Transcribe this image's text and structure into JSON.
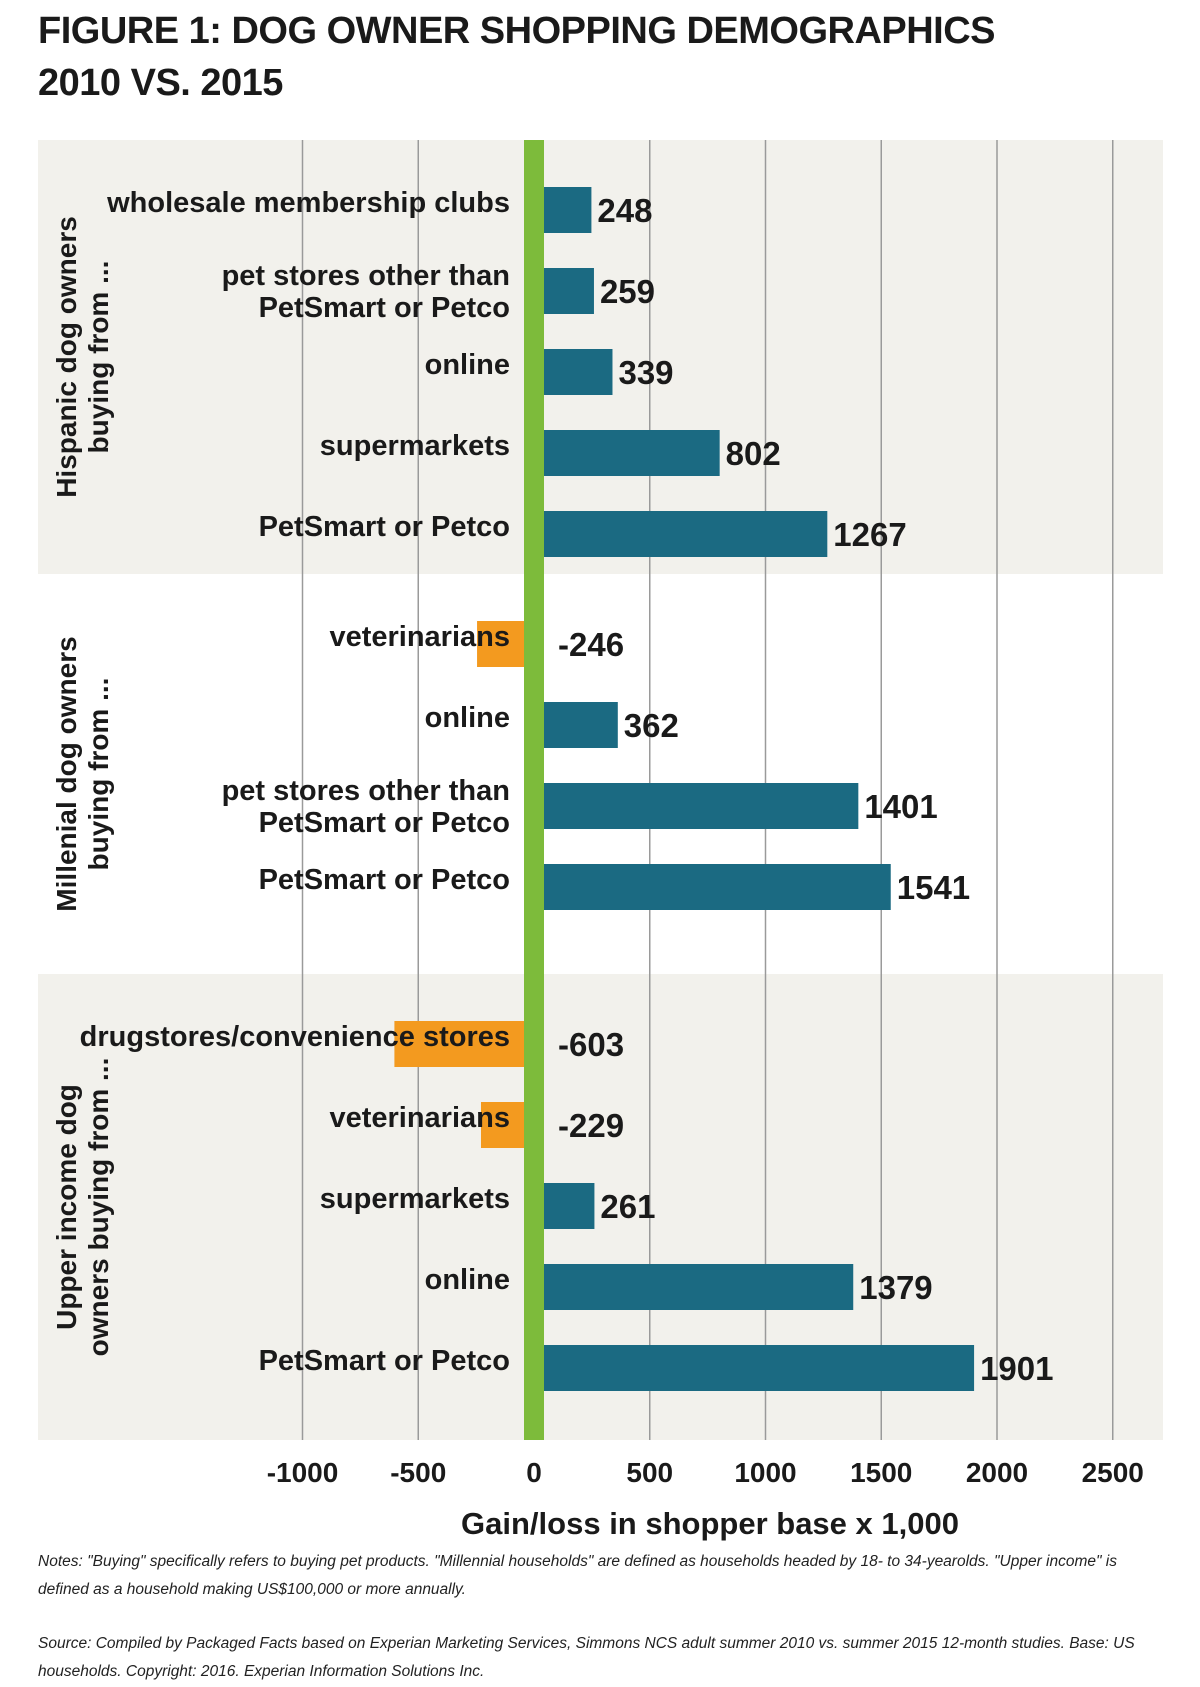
{
  "title_line1": "FIGURE 1: DOG OWNER SHOPPING DEMOGRAPHICS",
  "title_line2": "2010 VS. 2015",
  "notes": "Notes: \"Buying\" specifically refers to buying pet products. \"Millennial households\" are defined as households headed by 18- to 34-yearolds. \"Upper income\" is defined as a household making US$100,000 or more annually.",
  "source": "Source: Compiled by Packaged Facts based on Experian Marketing Services, Simmons NCS adult summer 2010 vs. summer 2015 12-month studies. Base: US households. Copyright: 2016. Experian Information Solutions Inc.",
  "chart_data": {
    "type": "bar",
    "orientation": "horizontal",
    "xlabel": "Gain/loss in shopper base x 1,000",
    "xlim": [
      -1000,
      2500
    ],
    "xticks": [
      -1000,
      -500,
      0,
      500,
      1000,
      1500,
      2000,
      2500
    ],
    "grid": true,
    "colors": {
      "positive": "#1b6a82",
      "negative": "#f39a1f",
      "zero_line": "#7dbb3b",
      "panel": "#f2f1ec"
    },
    "groups": [
      {
        "label": "Hispanic dog owners buying from ...",
        "label_lines": [
          "Hispanic dog owners",
          "buying from ..."
        ],
        "shaded": true,
        "bars": [
          {
            "category": "wholesale membership clubs",
            "value": 248
          },
          {
            "category": "pet stores other than PetSmart or Petco",
            "value": 259
          },
          {
            "category": "online",
            "value": 339
          },
          {
            "category": "supermarkets",
            "value": 802
          },
          {
            "category": "PetSmart or Petco",
            "value": 1267
          }
        ]
      },
      {
        "label": "Millenial dog owners buying from ...",
        "label_lines": [
          "Millenial dog owners",
          "buying from ..."
        ],
        "shaded": false,
        "bars": [
          {
            "category": "veterinarians",
            "value": -246
          },
          {
            "category": "online",
            "value": 362
          },
          {
            "category": "pet stores other than PetSmart or Petco",
            "value": 1401
          },
          {
            "category": "PetSmart or Petco",
            "value": 1541
          }
        ]
      },
      {
        "label": "Upper income dog owners buying from ...",
        "label_lines": [
          "Upper income dog",
          "owners buying from ..."
        ],
        "shaded": true,
        "bars": [
          {
            "category": "drugstores/convenience stores",
            "value": -603
          },
          {
            "category": "veterinarians",
            "value": -229
          },
          {
            "category": "supermarkets",
            "value": 261
          },
          {
            "category": "online",
            "value": 1379
          },
          {
            "category": "PetSmart or Petco",
            "value": 1901
          }
        ]
      }
    ]
  }
}
